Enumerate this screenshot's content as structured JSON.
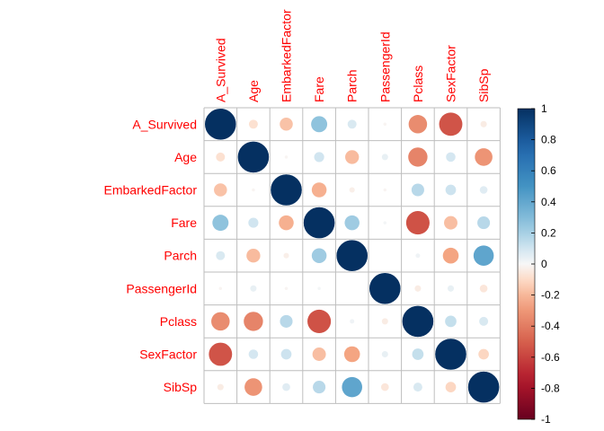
{
  "chart_data": {
    "type": "heatmap",
    "style": "correlation-circles",
    "variables": [
      "A_Survived",
      "Age",
      "EmbarkedFactor",
      "Fare",
      "Parch",
      "PassengerId",
      "Pclass",
      "SexFactor",
      "SibSp"
    ],
    "matrix": [
      [
        1.0,
        -0.08,
        -0.17,
        0.26,
        0.08,
        -0.01,
        -0.34,
        -0.54,
        -0.04
      ],
      [
        -0.08,
        1.0,
        -0.01,
        0.1,
        -0.19,
        0.04,
        -0.37,
        0.09,
        -0.31
      ],
      [
        -0.17,
        -0.01,
        1.0,
        -0.22,
        -0.03,
        -0.01,
        0.16,
        0.11,
        0.06
      ],
      [
        0.26,
        0.1,
        -0.22,
        1.0,
        0.22,
        0.01,
        -0.55,
        -0.18,
        0.16
      ],
      [
        0.08,
        -0.19,
        -0.03,
        0.22,
        1.0,
        -0.0,
        0.02,
        -0.25,
        0.41
      ],
      [
        -0.01,
        0.04,
        -0.01,
        0.01,
        -0.0,
        1.0,
        -0.04,
        0.04,
        -0.06
      ],
      [
        -0.34,
        -0.37,
        0.16,
        -0.55,
        0.02,
        -0.04,
        1.0,
        0.13,
        0.08
      ],
      [
        -0.54,
        0.09,
        0.11,
        -0.18,
        -0.25,
        0.04,
        0.13,
        1.0,
        -0.11
      ],
      [
        -0.04,
        -0.31,
        0.06,
        0.16,
        0.41,
        -0.06,
        0.08,
        -0.11,
        1.0
      ]
    ],
    "color_scale": {
      "range": [
        -1,
        1
      ],
      "tick_labels": [
        "1",
        "0.8",
        "0.6",
        "0.4",
        "0.2",
        "0",
        "-0.2",
        "-0.4",
        "-0.6",
        "-0.8",
        "-1"
      ],
      "low_color": "#67001f",
      "mid_color": "#f7f7f7",
      "high_color": "#053061"
    },
    "label_color": "#ff0000",
    "grid_color": "#bebebe",
    "legend_position": "right"
  }
}
